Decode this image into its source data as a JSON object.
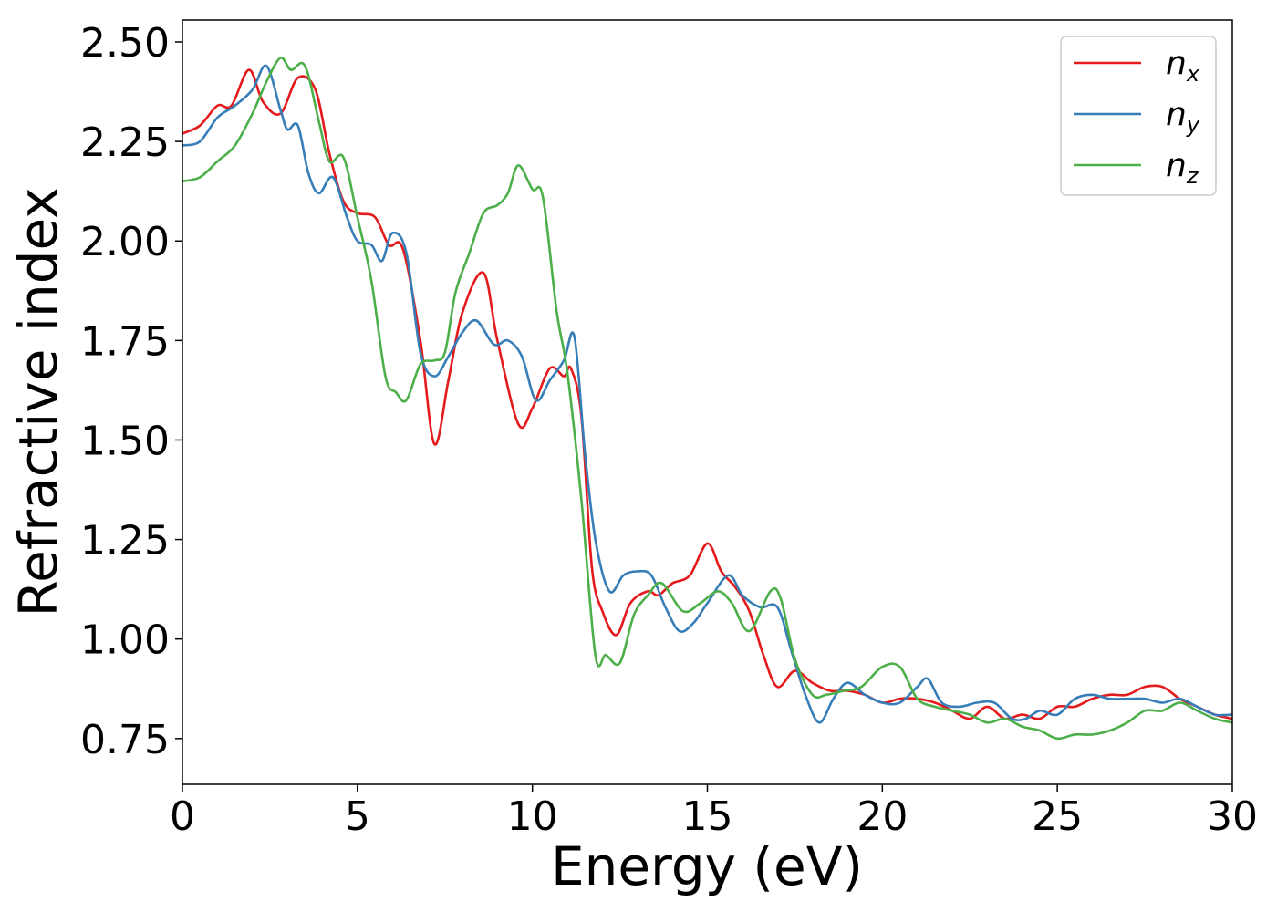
{
  "chart_data": {
    "type": "line",
    "xlabel": "Energy (eV)",
    "ylabel": "Refractive index",
    "xlim": [
      0,
      30
    ],
    "ylim": [
      0.635,
      2.555
    ],
    "xticks": [
      "0",
      "5",
      "10",
      "15",
      "20",
      "25",
      "30"
    ],
    "yticks": [
      "0.75",
      "1.00",
      "1.25",
      "1.50",
      "1.75",
      "2.00",
      "2.25",
      "2.50"
    ],
    "grid": false,
    "legend_position": "top-right",
    "series": [
      {
        "name": "n",
        "subscript": "x",
        "color": "#e41a1c",
        "points": [
          [
            0,
            2.27
          ],
          [
            0.5,
            2.29
          ],
          [
            1,
            2.34
          ],
          [
            1.4,
            2.34
          ],
          [
            1.9,
            2.43
          ],
          [
            2.3,
            2.35
          ],
          [
            2.8,
            2.32
          ],
          [
            3.3,
            2.41
          ],
          [
            3.8,
            2.38
          ],
          [
            4.2,
            2.22
          ],
          [
            4.6,
            2.1
          ],
          [
            5,
            2.07
          ],
          [
            5.5,
            2.06
          ],
          [
            5.9,
            1.99
          ],
          [
            6.3,
            1.98
          ],
          [
            6.8,
            1.75
          ],
          [
            7.2,
            1.49
          ],
          [
            7.6,
            1.65
          ],
          [
            8,
            1.82
          ],
          [
            8.6,
            1.92
          ],
          [
            9,
            1.75
          ],
          [
            9.6,
            1.54
          ],
          [
            10,
            1.58
          ],
          [
            10.5,
            1.68
          ],
          [
            10.9,
            1.66
          ],
          [
            11.1,
            1.68
          ],
          [
            11.4,
            1.56
          ],
          [
            11.7,
            1.18
          ],
          [
            12,
            1.07
          ],
          [
            12.4,
            1.01
          ],
          [
            12.8,
            1.09
          ],
          [
            13.3,
            1.12
          ],
          [
            13.6,
            1.11
          ],
          [
            14,
            1.14
          ],
          [
            14.5,
            1.16
          ],
          [
            15,
            1.24
          ],
          [
            15.4,
            1.17
          ],
          [
            15.8,
            1.13
          ],
          [
            16.2,
            1.07
          ],
          [
            16.6,
            0.96
          ],
          [
            17,
            0.88
          ],
          [
            17.5,
            0.92
          ],
          [
            18,
            0.89
          ],
          [
            18.5,
            0.87
          ],
          [
            19,
            0.87
          ],
          [
            19.5,
            0.86
          ],
          [
            20,
            0.84
          ],
          [
            20.5,
            0.85
          ],
          [
            21,
            0.85
          ],
          [
            21.5,
            0.84
          ],
          [
            22,
            0.82
          ],
          [
            22.5,
            0.8
          ],
          [
            23,
            0.83
          ],
          [
            23.5,
            0.8
          ],
          [
            24,
            0.81
          ],
          [
            24.5,
            0.8
          ],
          [
            25,
            0.83
          ],
          [
            25.5,
            0.83
          ],
          [
            26,
            0.85
          ],
          [
            26.5,
            0.86
          ],
          [
            27,
            0.86
          ],
          [
            27.5,
            0.88
          ],
          [
            28,
            0.88
          ],
          [
            28.5,
            0.85
          ],
          [
            29,
            0.83
          ],
          [
            29.5,
            0.81
          ],
          [
            30,
            0.8
          ]
        ]
      },
      {
        "name": "n",
        "subscript": "y",
        "color": "#377eb8",
        "points": [
          [
            0,
            2.24
          ],
          [
            0.5,
            2.25
          ],
          [
            1,
            2.31
          ],
          [
            1.5,
            2.34
          ],
          [
            2,
            2.38
          ],
          [
            2.4,
            2.44
          ],
          [
            2.8,
            2.33
          ],
          [
            3,
            2.28
          ],
          [
            3.3,
            2.29
          ],
          [
            3.6,
            2.17
          ],
          [
            3.9,
            2.12
          ],
          [
            4.3,
            2.16
          ],
          [
            4.7,
            2.06
          ],
          [
            5,
            2.0
          ],
          [
            5.4,
            1.99
          ],
          [
            5.7,
            1.95
          ],
          [
            6,
            2.02
          ],
          [
            6.4,
            1.97
          ],
          [
            6.8,
            1.72
          ],
          [
            7.2,
            1.66
          ],
          [
            7.6,
            1.71
          ],
          [
            8,
            1.77
          ],
          [
            8.4,
            1.8
          ],
          [
            8.9,
            1.74
          ],
          [
            9.3,
            1.75
          ],
          [
            9.7,
            1.71
          ],
          [
            10.1,
            1.6
          ],
          [
            10.5,
            1.65
          ],
          [
            10.9,
            1.7
          ],
          [
            11.2,
            1.76
          ],
          [
            11.5,
            1.47
          ],
          [
            11.8,
            1.25
          ],
          [
            12.2,
            1.12
          ],
          [
            12.6,
            1.16
          ],
          [
            13,
            1.17
          ],
          [
            13.4,
            1.16
          ],
          [
            13.8,
            1.08
          ],
          [
            14.2,
            1.02
          ],
          [
            14.6,
            1.04
          ],
          [
            15,
            1.09
          ],
          [
            15.6,
            1.16
          ],
          [
            16,
            1.11
          ],
          [
            16.5,
            1.08
          ],
          [
            17,
            1.08
          ],
          [
            17.4,
            0.97
          ],
          [
            17.8,
            0.86
          ],
          [
            18.2,
            0.79
          ],
          [
            18.6,
            0.85
          ],
          [
            19,
            0.89
          ],
          [
            19.5,
            0.86
          ],
          [
            20,
            0.84
          ],
          [
            20.5,
            0.84
          ],
          [
            21,
            0.88
          ],
          [
            21.3,
            0.9
          ],
          [
            21.7,
            0.84
          ],
          [
            22.2,
            0.83
          ],
          [
            22.7,
            0.84
          ],
          [
            23.2,
            0.84
          ],
          [
            23.7,
            0.8
          ],
          [
            24.1,
            0.8
          ],
          [
            24.5,
            0.82
          ],
          [
            25,
            0.81
          ],
          [
            25.5,
            0.85
          ],
          [
            26,
            0.86
          ],
          [
            26.5,
            0.85
          ],
          [
            27,
            0.85
          ],
          [
            27.5,
            0.85
          ],
          [
            28,
            0.84
          ],
          [
            28.5,
            0.85
          ],
          [
            29,
            0.83
          ],
          [
            29.5,
            0.81
          ],
          [
            30,
            0.81
          ]
        ]
      },
      {
        "name": "n",
        "subscript": "z",
        "color": "#4daf4a",
        "points": [
          [
            0,
            2.15
          ],
          [
            0.5,
            2.16
          ],
          [
            1,
            2.2
          ],
          [
            1.5,
            2.24
          ],
          [
            2,
            2.32
          ],
          [
            2.4,
            2.4
          ],
          [
            2.8,
            2.46
          ],
          [
            3.1,
            2.43
          ],
          [
            3.5,
            2.44
          ],
          [
            3.9,
            2.3
          ],
          [
            4.2,
            2.2
          ],
          [
            4.6,
            2.21
          ],
          [
            5,
            2.06
          ],
          [
            5.4,
            1.9
          ],
          [
            5.8,
            1.66
          ],
          [
            6.1,
            1.62
          ],
          [
            6.4,
            1.6
          ],
          [
            6.8,
            1.69
          ],
          [
            7.2,
            1.7
          ],
          [
            7.5,
            1.72
          ],
          [
            7.8,
            1.87
          ],
          [
            8.2,
            1.97
          ],
          [
            8.6,
            2.07
          ],
          [
            9,
            2.09
          ],
          [
            9.3,
            2.12
          ],
          [
            9.6,
            2.19
          ],
          [
            10,
            2.13
          ],
          [
            10.3,
            2.11
          ],
          [
            10.7,
            1.82
          ],
          [
            11,
            1.67
          ],
          [
            11.4,
            1.35
          ],
          [
            11.8,
            0.96
          ],
          [
            12.1,
            0.96
          ],
          [
            12.5,
            0.94
          ],
          [
            12.9,
            1.06
          ],
          [
            13.3,
            1.11
          ],
          [
            13.7,
            1.14
          ],
          [
            14.3,
            1.07
          ],
          [
            14.8,
            1.09
          ],
          [
            15.3,
            1.12
          ],
          [
            15.7,
            1.09
          ],
          [
            16.2,
            1.02
          ],
          [
            16.8,
            1.12
          ],
          [
            17.1,
            1.1
          ],
          [
            17.5,
            0.95
          ],
          [
            18,
            0.86
          ],
          [
            18.4,
            0.86
          ],
          [
            18.9,
            0.87
          ],
          [
            19.4,
            0.88
          ],
          [
            20,
            0.93
          ],
          [
            20.5,
            0.93
          ],
          [
            21,
            0.85
          ],
          [
            21.5,
            0.83
          ],
          [
            22,
            0.82
          ],
          [
            22.5,
            0.81
          ],
          [
            23,
            0.79
          ],
          [
            23.5,
            0.8
          ],
          [
            24,
            0.78
          ],
          [
            24.5,
            0.77
          ],
          [
            25,
            0.75
          ],
          [
            25.5,
            0.76
          ],
          [
            26,
            0.76
          ],
          [
            26.5,
            0.77
          ],
          [
            27,
            0.79
          ],
          [
            27.5,
            0.82
          ],
          [
            28,
            0.82
          ],
          [
            28.5,
            0.84
          ],
          [
            29,
            0.82
          ],
          [
            29.5,
            0.8
          ],
          [
            30,
            0.79
          ]
        ]
      }
    ]
  }
}
